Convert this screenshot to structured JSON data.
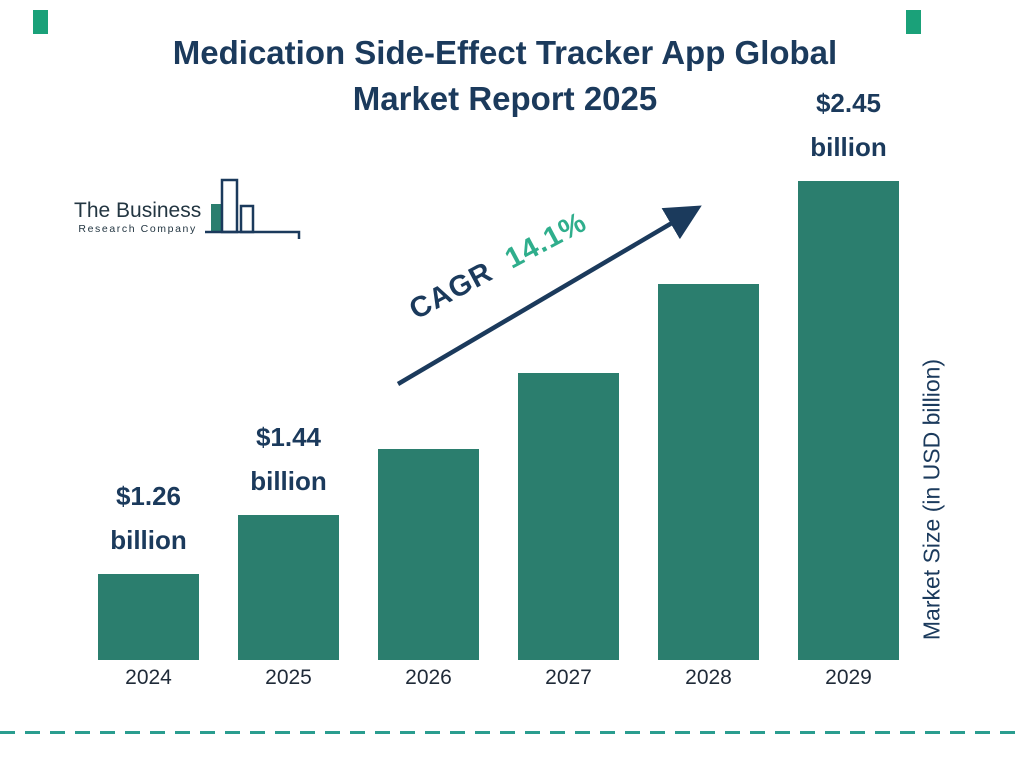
{
  "page": {
    "title_line1": "Medication Side-Effect Tracker App Global",
    "title_line2": "Market Report 2025"
  },
  "logo": {
    "name_line1": "The Business",
    "name_line2": "Research Company"
  },
  "chart_data": {
    "type": "bar",
    "title": "Medication Side-Effect Tracker App Global Market Report 2025",
    "categories": [
      "2024",
      "2025",
      "2026",
      "2027",
      "2028",
      "2029"
    ],
    "values": [
      1.26,
      1.44,
      1.64,
      1.87,
      2.14,
      2.45
    ],
    "unit": "USD billion",
    "xlabel": "",
    "ylabel": "Market Size (in USD billion)",
    "ylim": [
      1.0,
      2.6
    ],
    "grid": false,
    "legend": false,
    "bar_labels": [
      {
        "index": 0,
        "line1": "$1.26",
        "line2": "billion"
      },
      {
        "index": 1,
        "line1": "$1.44",
        "line2": "billion"
      },
      {
        "index": 5,
        "line1": "$2.45",
        "line2": "billion"
      }
    ],
    "cagr": {
      "label": "CAGR",
      "value": "14.1%"
    }
  },
  "colors": {
    "navy": "#1b3a5c",
    "bar_teal": "#2b7e6e",
    "cagr_green": "#2fae8c",
    "dash_teal": "#2a9d8f",
    "corner_green": "#1aa179",
    "tick_dark": "#1f2a38"
  }
}
